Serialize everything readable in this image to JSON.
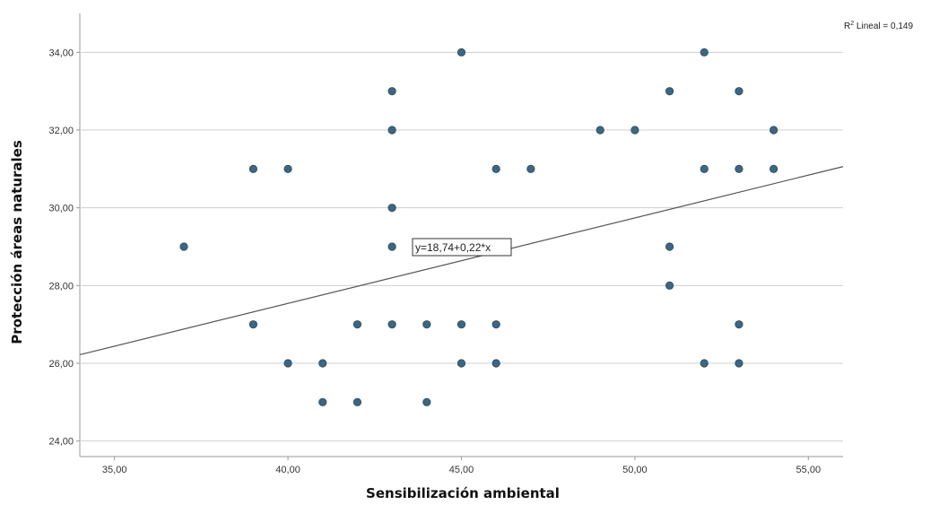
{
  "chart_data": {
    "type": "scatter",
    "title": "",
    "xlabel": "Sensibilización ambiental",
    "ylabel": "Protección áreas naturales",
    "xlim": [
      34.0,
      56.0
    ],
    "ylim": [
      23.6,
      35.0
    ],
    "x_ticks": [
      35,
      40,
      45,
      50,
      55
    ],
    "x_tick_labels": [
      "35,00",
      "40,00",
      "45,00",
      "50,00",
      "55,00"
    ],
    "y_ticks": [
      24,
      26,
      28,
      30,
      32,
      34
    ],
    "y_tick_labels": [
      "24,00",
      "26,00",
      "28,00",
      "30,00",
      "32,00",
      "34,00"
    ],
    "y_tick_labels_as_printed": [
      "24,00",
      "26,00",
      "28,00",
      "30,00",
      "32,00",
      "34,00"
    ],
    "grid": true,
    "r2_label": "R² Lineal = 0,149",
    "r2_prefix": "R",
    "r2_sup": "2",
    "r2_suffix": " Lineal = 0,149",
    "equation_label": "y=18,74+0,22*x",
    "fit_line": {
      "intercept": 18.74,
      "slope": 0.22
    },
    "point_color": "#3d6680",
    "line_color": "#555555",
    "series": [
      {
        "points": [
          [
            37,
            29
          ],
          [
            39,
            31
          ],
          [
            39,
            27
          ],
          [
            40,
            31
          ],
          [
            40,
            26
          ],
          [
            41,
            26
          ],
          [
            41,
            25
          ],
          [
            42,
            27
          ],
          [
            42,
            25
          ],
          [
            43,
            33
          ],
          [
            43,
            32
          ],
          [
            43,
            30
          ],
          [
            43,
            29
          ],
          [
            43,
            27
          ],
          [
            44,
            29
          ],
          [
            44,
            27
          ],
          [
            44,
            25
          ],
          [
            45,
            34
          ],
          [
            45,
            27
          ],
          [
            45,
            26
          ],
          [
            46,
            31
          ],
          [
            46,
            27
          ],
          [
            46,
            26
          ],
          [
            47,
            31
          ],
          [
            49,
            32
          ],
          [
            50,
            32
          ],
          [
            51,
            33
          ],
          [
            51,
            29
          ],
          [
            51,
            28
          ],
          [
            52,
            34
          ],
          [
            52,
            31
          ],
          [
            52,
            26
          ],
          [
            53,
            33
          ],
          [
            53,
            31
          ],
          [
            53,
            27
          ],
          [
            53,
            26
          ],
          [
            54,
            32
          ],
          [
            54,
            31
          ]
        ]
      }
    ]
  }
}
